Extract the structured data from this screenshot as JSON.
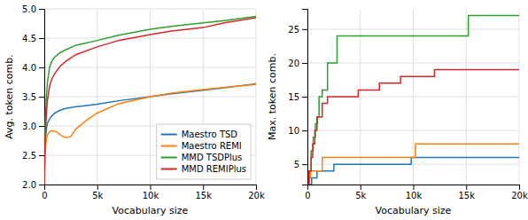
{
  "chart_data": [
    {
      "type": "line",
      "xlabel": "Vocabulary size",
      "ylabel": "Avg. token comb.",
      "xlim": [
        0,
        20000
      ],
      "ylim": [
        2.0,
        5.0
      ],
      "xticks": [
        0,
        {
          "value": 5000,
          "label": "5k"
        },
        {
          "value": 10000,
          "label": "10k"
        },
        {
          "value": 15000,
          "label": "15k"
        },
        {
          "value": 20000,
          "label": "20k"
        }
      ],
      "yticks": [
        {
          "value": 2.0,
          "label": "2.0"
        },
        2.5,
        {
          "value": 3.0,
          "label": "3.0"
        },
        3.5,
        {
          "value": 4.0,
          "label": "4.0"
        },
        4.5,
        {
          "value": 5.0,
          "label": "5.0"
        }
      ],
      "grid": true,
      "legend": "lower right",
      "series": [
        {
          "name": "Maestro TSD",
          "color": "#1f77b4",
          "x": [
            0,
            50,
            100,
            200,
            300,
            500,
            700,
            1000,
            1500,
            2000,
            3000,
            4000,
            5000,
            7000,
            10000,
            12000,
            15000,
            17000,
            20000
          ],
          "values": [
            2.0,
            2.5,
            2.75,
            2.95,
            3.05,
            3.12,
            3.17,
            3.22,
            3.27,
            3.3,
            3.33,
            3.35,
            3.37,
            3.43,
            3.5,
            3.55,
            3.61,
            3.65,
            3.72
          ]
        },
        {
          "name": "Maestro REMI",
          "color": "#ff7f0e",
          "x": [
            0,
            50,
            100,
            200,
            300,
            500,
            700,
            1000,
            1300,
            1600,
            2000,
            2500,
            3000,
            4000,
            5000,
            7000,
            10000,
            12000,
            15000,
            17000,
            20000
          ],
          "values": [
            2.0,
            2.4,
            2.6,
            2.78,
            2.85,
            2.9,
            2.92,
            2.91,
            2.88,
            2.84,
            2.8,
            2.82,
            2.95,
            3.1,
            3.22,
            3.38,
            3.5,
            3.56,
            3.62,
            3.66,
            3.71
          ]
        },
        {
          "name": "MMD TSDPlus",
          "color": "#2ca02c",
          "x": [
            0,
            50,
            100,
            200,
            300,
            500,
            700,
            1000,
            1500,
            2000,
            3000,
            5000,
            7000,
            10000,
            12000,
            15000,
            17000,
            20000
          ],
          "values": [
            2.0,
            2.8,
            3.1,
            3.5,
            3.75,
            4.0,
            4.1,
            4.18,
            4.25,
            4.3,
            4.38,
            4.46,
            4.55,
            4.65,
            4.7,
            4.76,
            4.8,
            4.87
          ]
        },
        {
          "name": "MMD REMIPlus",
          "color": "#d62728",
          "x": [
            0,
            50,
            100,
            200,
            300,
            500,
            700,
            1000,
            1500,
            2000,
            3000,
            5000,
            7000,
            10000,
            12000,
            15000,
            17000,
            20000
          ],
          "values": [
            2.0,
            2.5,
            2.85,
            3.2,
            3.45,
            3.68,
            3.8,
            3.9,
            4.02,
            4.1,
            4.22,
            4.35,
            4.46,
            4.56,
            4.62,
            4.68,
            4.76,
            4.85
          ]
        }
      ]
    },
    {
      "type": "step",
      "xlabel": "Vocabulary size",
      "ylabel": "Max. token comb.",
      "xlim": [
        0,
        20000
      ],
      "ylim": [
        2,
        28
      ],
      "xticks": [
        0,
        {
          "value": 5000,
          "label": "5k"
        },
        {
          "value": 10000,
          "label": "10k"
        },
        {
          "value": 15000,
          "label": "15k"
        },
        {
          "value": 20000,
          "label": "20k"
        }
      ],
      "yticks": [
        5,
        10,
        15,
        20,
        25
      ],
      "grid": true,
      "series": [
        {
          "color": "#1f77b4",
          "x": [
            0,
            250,
            400,
            600,
            900,
            1800,
            2500,
            3500,
            9500,
            9800,
            20000
          ],
          "values": [
            2,
            2,
            3,
            3,
            4,
            4,
            5,
            5,
            5,
            6,
            6
          ]
        },
        {
          "color": "#ff7f0e",
          "x": [
            0,
            150,
            300,
            600,
            1400,
            2000,
            4000,
            9700,
            10200,
            20000
          ],
          "values": [
            2,
            3,
            4,
            4,
            6,
            6,
            6,
            6,
            8,
            8
          ]
        },
        {
          "color": "#2ca02c",
          "x": [
            0,
            150,
            350,
            550,
            750,
            950,
            1100,
            1400,
            1900,
            2800,
            4800,
            14600,
            15200,
            20000
          ],
          "values": [
            2,
            4,
            7,
            9,
            11,
            12,
            15,
            16,
            20,
            24,
            24,
            24,
            27,
            27
          ]
        },
        {
          "color": "#d62728",
          "x": [
            0,
            150,
            350,
            500,
            700,
            900,
            1100,
            1400,
            1900,
            2900,
            4800,
            5800,
            6800,
            7800,
            8800,
            9700,
            12000,
            17500,
            20000
          ],
          "values": [
            2,
            4,
            6,
            8,
            10,
            12,
            12,
            14,
            15,
            15,
            16,
            16,
            17,
            17,
            18,
            18,
            19,
            19,
            19
          ]
        }
      ]
    }
  ]
}
